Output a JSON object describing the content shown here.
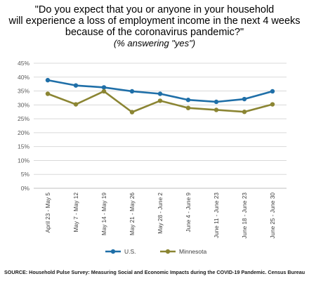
{
  "chart_data": {
    "type": "line",
    "title_lines": [
      "\"Do you expect that you or anyone in your household",
      "will experience a loss of employment income in the next 4 weeks",
      "because of the coronavirus pandemic?\""
    ],
    "subtitle": "(% answering \"yes\")",
    "categories": [
      "April 23 - May 5",
      "May 7 - May 12",
      "May 14 - May 19",
      "May 21 - May 26",
      "May 28 - June 2",
      "June 4 - June 9",
      "June 11 - June 23",
      "June 18 - June 23",
      "June 25 - June 30"
    ],
    "series": [
      {
        "name": "U.S.",
        "color": "#1f6fa8",
        "values": [
          38.9,
          37.0,
          36.3,
          34.9,
          34.0,
          31.8,
          31.1,
          32.1,
          34.9
        ]
      },
      {
        "name": "Minnesota",
        "color": "#8b8533",
        "values": [
          34.0,
          30.2,
          34.9,
          27.4,
          31.5,
          28.9,
          28.2,
          27.5,
          30.2
        ]
      }
    ],
    "yticks": [
      "0%",
      "5%",
      "10%",
      "15%",
      "20%",
      "25%",
      "30%",
      "35%",
      "40%",
      "45%"
    ],
    "ylim": [
      0,
      45
    ],
    "grid": true,
    "legend": "bottom"
  },
  "source": "SOURCE: Household Pulse Survey: Measuring Social and Economic Impacts during the COVID-19 Pandemic. Census Bureau"
}
